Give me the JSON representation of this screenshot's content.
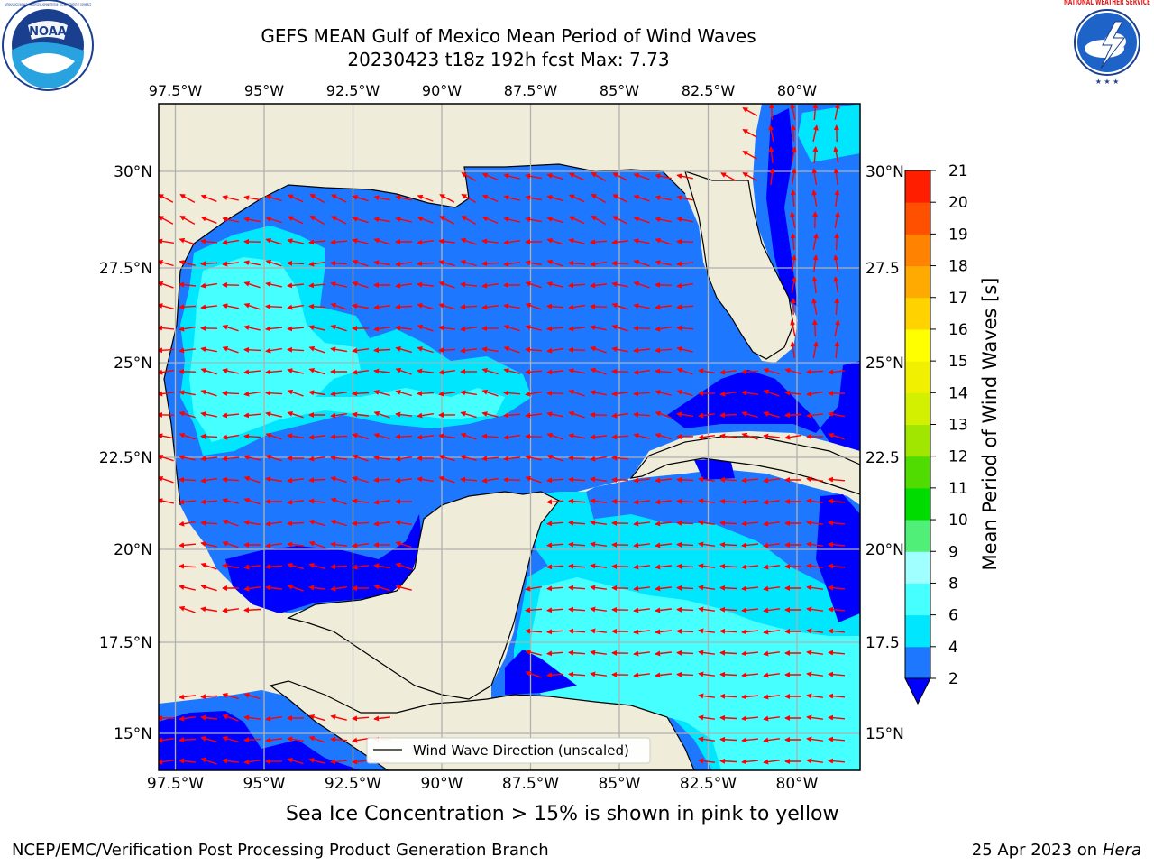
{
  "title": {
    "line1": "GEFS MEAN Gulf of Mexico Mean Period of Wind Waves",
    "line2": "20230423 t18z 192h fcst   Max: 7.73"
  },
  "lon_labels": [
    "97.5°W",
    "95°W",
    "92.5°W",
    "90°W",
    "87.5°W",
    "85°W",
    "82.5°W",
    "80°W"
  ],
  "lat_labels": [
    "30°N",
    "27.5°N",
    "25°N",
    "22.5°N",
    "20°N",
    "17.5°N",
    "15°N"
  ],
  "lat_labels_right": [
    "30°N",
    "27.5",
    "25°N",
    "22.5",
    "20°N",
    "17.5",
    "15°N"
  ],
  "colorbar": {
    "label": "Mean Period of Wind Waves [s]",
    "ticks": [
      "2",
      "4",
      "6",
      "8",
      "9",
      "10",
      "11",
      "12",
      "13",
      "14",
      "15",
      "16",
      "17",
      "18",
      "19",
      "20",
      "21"
    ],
    "colors": [
      "#1e78ff",
      "#00e6ff",
      "#46ffff",
      "#a0ffff",
      "#50f078",
      "#00dc00",
      "#50dc00",
      "#a0e600",
      "#d2f000",
      "#f0f000",
      "#ffff00",
      "#ffd200",
      "#ffaa00",
      "#ff8200",
      "#ff5000",
      "#ff1e00"
    ],
    "extend_color": "#0000ff"
  },
  "legend": {
    "label": "Wind Wave Direction (unscaled)"
  },
  "caption": "Sea Ice Concentration > 15% is shown in pink to yellow",
  "footer": {
    "left": "NCEP/EMC/Verification Post Processing Product Generation Branch",
    "right_date": "25 Apr 2023 on",
    "right_host": "Hera"
  },
  "logos": {
    "noaa": "NOAA",
    "noaa_ring": "NATIONAL OCEANIC AND ATMOSPHERIC ADMINISTRATION · U.S. DEPARTMENT OF COMMERCE",
    "nws_ring": "NATIONAL WEATHER SERVICE"
  },
  "colors": {
    "land": "#efedd9",
    "grid": "#b0b0b0",
    "arrow": "#ff0000",
    "period_2_4": "#1e78ff",
    "period_4_6": "#00e6ff",
    "period_6_8": "#46ffff",
    "period_below_2": "#0000ff"
  },
  "icons": [
    "noaa-logo-icon",
    "nws-logo-icon",
    "wind-arrow-icon"
  ]
}
